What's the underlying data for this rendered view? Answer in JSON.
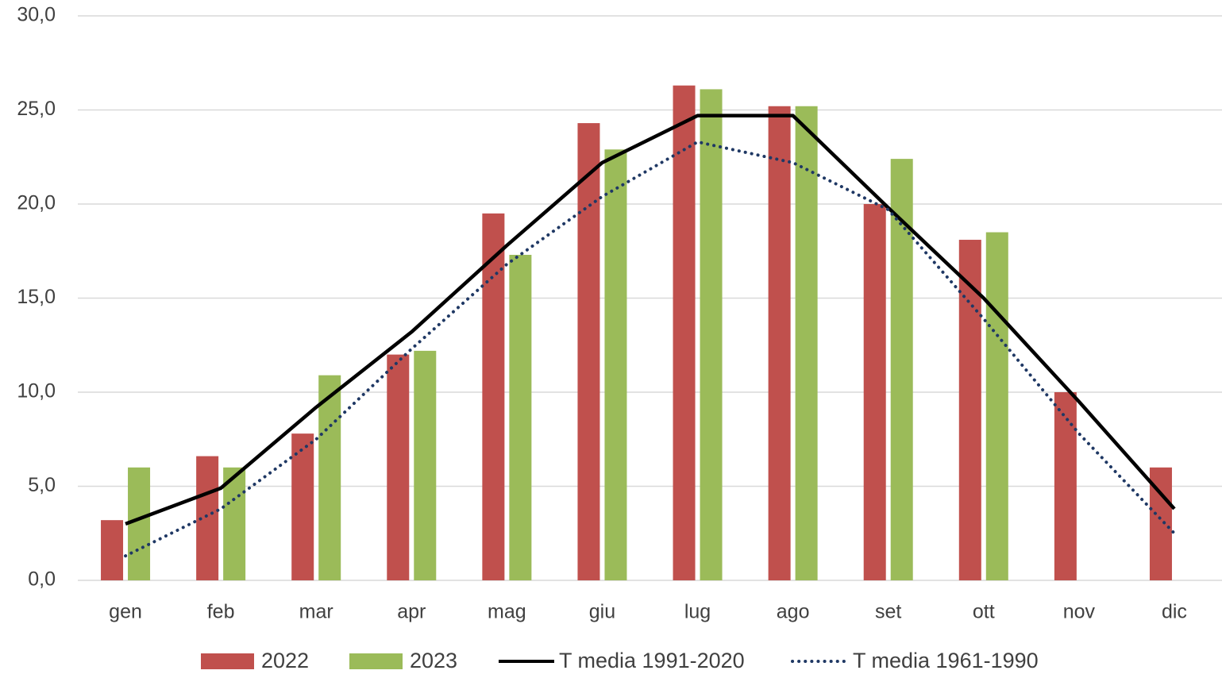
{
  "chart_data": {
    "type": "bar",
    "categories": [
      "gen",
      "feb",
      "mar",
      "apr",
      "mag",
      "giu",
      "lug",
      "ago",
      "set",
      "ott",
      "nov",
      "dic"
    ],
    "series": [
      {
        "name": "2022",
        "type": "bar",
        "color": "#c0504d",
        "values": [
          3.2,
          6.6,
          7.8,
          12.0,
          19.5,
          24.3,
          26.3,
          25.2,
          20.0,
          18.1,
          10.0,
          6.0
        ]
      },
      {
        "name": "2023",
        "type": "bar",
        "color": "#9bbb59",
        "values": [
          6.0,
          6.0,
          10.9,
          12.2,
          17.3,
          22.9,
          26.1,
          25.2,
          22.4,
          18.5,
          null,
          null
        ]
      },
      {
        "name": "T media 1991-2020",
        "type": "line",
        "line_style": "solid",
        "color": "#000000",
        "values": [
          3.0,
          4.9,
          9.2,
          13.2,
          17.8,
          22.2,
          24.7,
          24.7,
          19.8,
          15.0,
          9.5,
          3.8
        ]
      },
      {
        "name": "T media 1961-1990",
        "type": "line",
        "line_style": "dotted",
        "color": "#1f3864",
        "values": [
          1.3,
          3.8,
          7.5,
          12.3,
          16.8,
          20.4,
          23.3,
          22.2,
          19.7,
          13.9,
          7.8,
          2.5
        ]
      }
    ],
    "ylim": [
      0,
      30
    ],
    "yticks": [
      {
        "value": 0,
        "label": "0,0"
      },
      {
        "value": 5,
        "label": "5,0"
      },
      {
        "value": 10,
        "label": "10,0"
      },
      {
        "value": 15,
        "label": "15,0"
      },
      {
        "value": 20,
        "label": "20,0"
      },
      {
        "value": 25,
        "label": "25,0"
      },
      {
        "value": 30,
        "label": "30,0"
      }
    ],
    "grid": true,
    "legend": "bottom"
  }
}
